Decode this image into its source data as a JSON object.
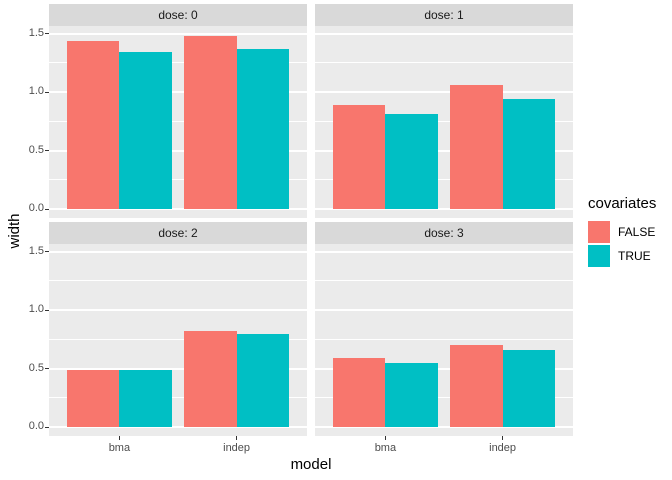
{
  "chart_data": {
    "type": "bar",
    "title": "",
    "xlabel": "model",
    "ylabel": "width",
    "categories": [
      "bma",
      "indep"
    ],
    "facet_variable": "dose",
    "facets": [
      {
        "label": "dose: 0",
        "series": [
          {
            "name": "FALSE",
            "values": [
              1.44,
              1.48
            ]
          },
          {
            "name": "TRUE",
            "values": [
              1.34,
              1.37
            ]
          }
        ]
      },
      {
        "label": "dose: 1",
        "series": [
          {
            "name": "FALSE",
            "values": [
              0.89,
              1.06
            ]
          },
          {
            "name": "TRUE",
            "values": [
              0.81,
              0.94
            ]
          }
        ]
      },
      {
        "label": "dose: 2",
        "series": [
          {
            "name": "FALSE",
            "values": [
              0.49,
              0.82
            ]
          },
          {
            "name": "TRUE",
            "values": [
              0.49,
              0.8
            ]
          }
        ]
      },
      {
        "label": "dose: 3",
        "series": [
          {
            "name": "FALSE",
            "values": [
              0.59,
              0.7
            ]
          },
          {
            "name": "TRUE",
            "values": [
              0.55,
              0.66
            ]
          }
        ]
      }
    ],
    "legend": {
      "title": "covariates",
      "entries": [
        {
          "label": "FALSE",
          "color": "#F8766D"
        },
        {
          "label": "TRUE",
          "color": "#00BFC4"
        }
      ]
    },
    "y_axis": {
      "tick_labels": [
        "0.0",
        "0.5",
        "1.0",
        "1.5"
      ],
      "tick_values": [
        0,
        0.5,
        1.0,
        1.5
      ],
      "minor_values": [
        0.25,
        0.75,
        1.25
      ],
      "ylim": [
        -0.075,
        1.565
      ]
    },
    "layout_hints": {
      "grid": "on",
      "legend_position": "right",
      "facet_rows": 2,
      "facet_cols": 2
    },
    "colors": {
      "panel_bg": "#EBEBEB",
      "strip_bg": "#D9D9D9",
      "grid": "#FFFFFF",
      "axis_text": "#4D4D4D",
      "strip_text": "#1A1A1A",
      "title_text": "#000000"
    }
  }
}
